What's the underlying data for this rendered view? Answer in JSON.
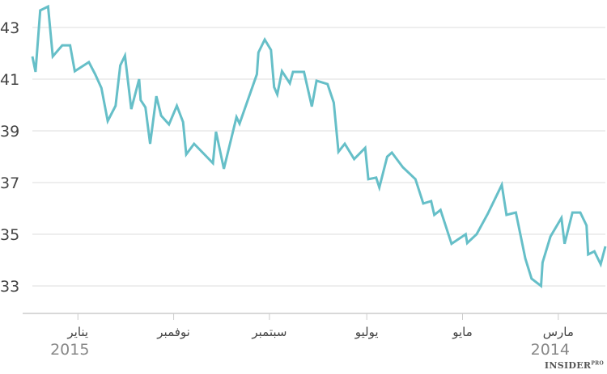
{
  "chart_data": {
    "type": "line",
    "title": "",
    "xlabel": "",
    "ylabel": "",
    "x_axis_reversed": true,
    "grid": "horizontal",
    "line_color": "#66bfc8",
    "ylim": [
      32,
      44
    ],
    "yticks": [
      33,
      35,
      37,
      39,
      41,
      43
    ],
    "xlim": [
      "2014-01-30",
      "2015-01-30"
    ],
    "xticks": [
      {
        "date": "2015-01-01",
        "label": "يناير",
        "year": "2015"
      },
      {
        "date": "2014-11-01",
        "label": "نوفمبر"
      },
      {
        "date": "2014-09-01",
        "label": "سبتمبر"
      },
      {
        "date": "2014-07-01",
        "label": "يوليو"
      },
      {
        "date": "2014-05-01",
        "label": "مايو"
      },
      {
        "date": "2014-03-01",
        "label": "مارس",
        "year": "2014"
      }
    ],
    "series": [
      {
        "points": [
          [
            "2015-01-30",
            41.88
          ],
          [
            "2015-01-28",
            41.28
          ],
          [
            "2015-01-25",
            43.66
          ],
          [
            "2015-01-20",
            43.81
          ],
          [
            "2015-01-17",
            41.88
          ],
          [
            "2015-01-11",
            42.31
          ],
          [
            "2015-01-06",
            42.31
          ],
          [
            "2015-01-03",
            41.31
          ],
          [
            "2014-12-25",
            41.66
          ],
          [
            "2014-12-21",
            41.19
          ],
          [
            "2014-12-17",
            40.66
          ],
          [
            "2014-12-13",
            39.38
          ],
          [
            "2014-12-08",
            39.97
          ],
          [
            "2014-12-05",
            41.53
          ],
          [
            "2014-12-02",
            41.91
          ],
          [
            "2014-11-28",
            39.84
          ],
          [
            "2014-11-23",
            41.0
          ],
          [
            "2014-11-22",
            40.19
          ],
          [
            "2014-11-19",
            39.91
          ],
          [
            "2014-11-16",
            38.5
          ],
          [
            "2014-11-12",
            40.34
          ],
          [
            "2014-11-09",
            39.59
          ],
          [
            "2014-11-04",
            39.25
          ],
          [
            "2014-10-30",
            39.97
          ],
          [
            "2014-10-26",
            39.34
          ],
          [
            "2014-10-24",
            38.09
          ],
          [
            "2014-10-19",
            38.5
          ],
          [
            "2014-10-07",
            37.75
          ],
          [
            "2014-10-05",
            38.97
          ],
          [
            "2014-09-30",
            37.53
          ],
          [
            "2014-09-22",
            39.53
          ],
          [
            "2014-09-20",
            39.28
          ],
          [
            "2014-09-09",
            41.19
          ],
          [
            "2014-09-08",
            42.03
          ],
          [
            "2014-09-04",
            42.53
          ],
          [
            "2014-08-31",
            42.13
          ],
          [
            "2014-08-29",
            40.69
          ],
          [
            "2014-08-27",
            40.41
          ],
          [
            "2014-08-24",
            41.31
          ],
          [
            "2014-08-19",
            40.84
          ],
          [
            "2014-08-17",
            41.28
          ],
          [
            "2014-08-10",
            41.28
          ],
          [
            "2014-08-05",
            39.94
          ],
          [
            "2014-08-02",
            40.94
          ],
          [
            "2014-07-26",
            40.81
          ],
          [
            "2014-07-22",
            40.09
          ],
          [
            "2014-07-19",
            38.19
          ],
          [
            "2014-07-15",
            38.5
          ],
          [
            "2014-07-09",
            37.91
          ],
          [
            "2014-07-02",
            38.34
          ],
          [
            "2014-06-30",
            37.13
          ],
          [
            "2014-06-25",
            37.19
          ],
          [
            "2014-06-23",
            36.81
          ],
          [
            "2014-06-18",
            38.0
          ],
          [
            "2014-06-15",
            38.16
          ],
          [
            "2014-06-08",
            37.59
          ],
          [
            "2014-05-31",
            37.13
          ],
          [
            "2014-05-26",
            36.19
          ],
          [
            "2014-05-21",
            36.28
          ],
          [
            "2014-05-19",
            35.75
          ],
          [
            "2014-05-15",
            35.94
          ],
          [
            "2014-05-08",
            34.63
          ],
          [
            "2014-04-29",
            35.0
          ],
          [
            "2014-04-28",
            34.66
          ],
          [
            "2014-04-22",
            35.0
          ],
          [
            "2014-04-15",
            35.78
          ],
          [
            "2014-04-06",
            36.91
          ],
          [
            "2014-04-03",
            35.75
          ],
          [
            "2014-03-28",
            35.84
          ],
          [
            "2014-03-22",
            34.06
          ],
          [
            "2014-03-18",
            33.28
          ],
          [
            "2014-03-12",
            33.0
          ],
          [
            "2014-03-11",
            33.91
          ],
          [
            "2014-03-06",
            34.91
          ],
          [
            "2014-02-27",
            35.63
          ],
          [
            "2014-02-25",
            34.63
          ],
          [
            "2014-02-20",
            35.84
          ],
          [
            "2014-02-15",
            35.84
          ],
          [
            "2014-02-11",
            35.34
          ],
          [
            "2014-02-10",
            34.22
          ],
          [
            "2014-02-06",
            34.34
          ],
          [
            "2014-02-02",
            33.84
          ],
          [
            "2014-01-30",
            34.53
          ]
        ]
      }
    ]
  },
  "logo": {
    "text": "INSIDER",
    "sup": "PRO"
  }
}
